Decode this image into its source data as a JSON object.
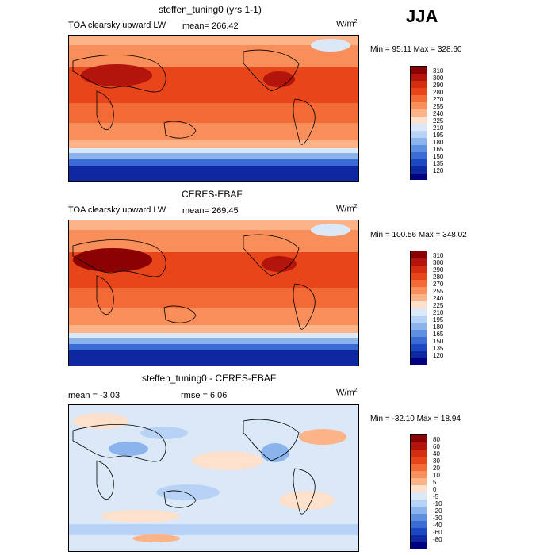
{
  "season": "JJA",
  "panels": [
    {
      "title": "steffen_tuning0 (yrs 1-1)",
      "left_label": "TOA clearsky upward LW",
      "stat1": "mean= 266.42",
      "stat2": "",
      "units_base": "W/m",
      "units_exp": "2",
      "minmax": "Min =  95.11 Max = 328.60",
      "levels": [
        "310",
        "300",
        "290",
        "280",
        "270",
        "255",
        "240",
        "225",
        "210",
        "195",
        "180",
        "165",
        "150",
        "135",
        "120"
      ],
      "colors": [
        "#8b0000",
        "#b3140b",
        "#d42d0f",
        "#e8451b",
        "#f26a36",
        "#f88e5a",
        "#fcb388",
        "#fde1cc",
        "#dbe8f8",
        "#b7d2f4",
        "#8cb4ec",
        "#5f8fe0",
        "#3b6cd6",
        "#1d48c4",
        "#0d28a0",
        "#000080"
      ]
    },
    {
      "title": "CERES-EBAF",
      "left_label": "TOA clearsky upward LW",
      "stat1": "mean= 269.45",
      "stat2": "",
      "units_base": "W/m",
      "units_exp": "2",
      "minmax": "Min = 100.56 Max = 348.02",
      "levels": [
        "310",
        "300",
        "290",
        "280",
        "270",
        "255",
        "240",
        "225",
        "210",
        "195",
        "180",
        "165",
        "150",
        "135",
        "120"
      ],
      "colors": [
        "#8b0000",
        "#b3140b",
        "#d42d0f",
        "#e8451b",
        "#f26a36",
        "#f88e5a",
        "#fcb388",
        "#fde1cc",
        "#dbe8f8",
        "#b7d2f4",
        "#8cb4ec",
        "#5f8fe0",
        "#3b6cd6",
        "#1d48c4",
        "#0d28a0",
        "#000080"
      ]
    },
    {
      "title": "steffen_tuning0 - CERES-EBAF",
      "left_label": "mean =  -3.03",
      "stat1": "rmse =  6.06",
      "stat2": "",
      "units_base": "W/m",
      "units_exp": "2",
      "minmax": "Min = -32.10 Max =  18.94",
      "levels": [
        "80",
        "60",
        "40",
        "30",
        "20",
        "10",
        "5",
        "0",
        "-5",
        "-10",
        "-20",
        "-30",
        "-40",
        "-60",
        "-80"
      ],
      "colors": [
        "#8b0000",
        "#b3140b",
        "#d42d0f",
        "#e8451b",
        "#f26a36",
        "#f88e5a",
        "#fcb388",
        "#fde1cc",
        "#dbe8f8",
        "#b7d2f4",
        "#8cb4ec",
        "#5f8fe0",
        "#3b6cd6",
        "#1d48c4",
        "#0d28a0",
        "#000080"
      ]
    }
  ]
}
